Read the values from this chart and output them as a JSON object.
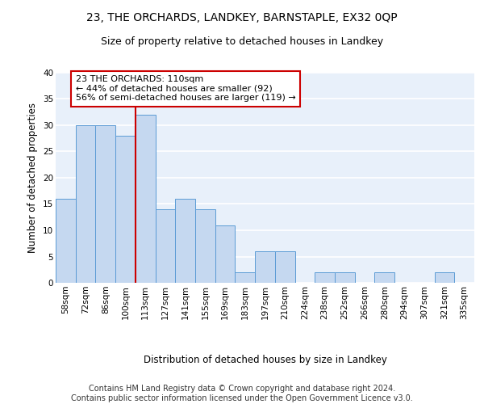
{
  "title1": "23, THE ORCHARDS, LANDKEY, BARNSTAPLE, EX32 0QP",
  "title2": "Size of property relative to detached houses in Landkey",
  "xlabel": "Distribution of detached houses by size in Landkey",
  "ylabel": "Number of detached properties",
  "categories": [
    "58sqm",
    "72sqm",
    "86sqm",
    "100sqm",
    "113sqm",
    "127sqm",
    "141sqm",
    "155sqm",
    "169sqm",
    "183sqm",
    "197sqm",
    "210sqm",
    "224sqm",
    "238sqm",
    "252sqm",
    "266sqm",
    "280sqm",
    "294sqm",
    "307sqm",
    "321sqm",
    "335sqm"
  ],
  "values": [
    16,
    30,
    30,
    28,
    32,
    14,
    16,
    14,
    11,
    2,
    6,
    6,
    0,
    2,
    2,
    0,
    2,
    0,
    0,
    2,
    0
  ],
  "bar_color": "#c5d8f0",
  "bar_edge_color": "#5b9bd5",
  "vline_color": "#cc0000",
  "annotation_text": "23 THE ORCHARDS: 110sqm\n← 44% of detached houses are smaller (92)\n56% of semi-detached houses are larger (119) →",
  "annotation_box_color": "#ffffff",
  "annotation_box_edge": "#cc0000",
  "ylim": [
    0,
    40
  ],
  "yticks": [
    0,
    5,
    10,
    15,
    20,
    25,
    30,
    35,
    40
  ],
  "footer": "Contains HM Land Registry data © Crown copyright and database right 2024.\nContains public sector information licensed under the Open Government Licence v3.0.",
  "bg_color": "#e8f0fa",
  "fig_bg": "#ffffff",
  "grid_color": "#ffffff",
  "title1_fontsize": 10,
  "title2_fontsize": 9,
  "xlabel_fontsize": 8.5,
  "ylabel_fontsize": 8.5,
  "tick_fontsize": 7.5,
  "footer_fontsize": 7,
  "ann_fontsize": 8
}
